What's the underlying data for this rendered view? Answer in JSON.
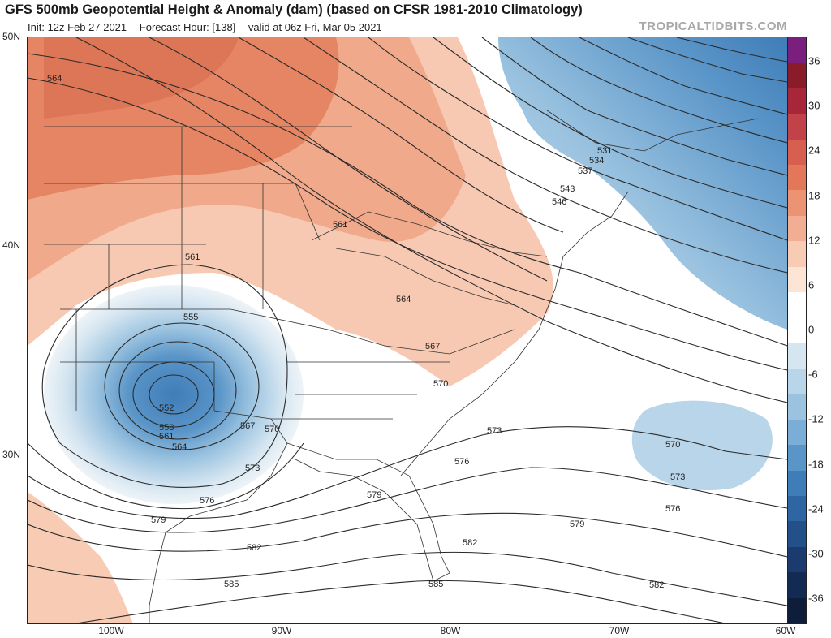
{
  "header": {
    "title": "GFS 500mb Geopotential Height & Anomaly (dam) (based on CFSR 1981-2010 Climatology)",
    "init": "Init: 12z Feb 27 2021",
    "forecast_hour": "Forecast Hour: [138]",
    "valid": "valid at 06z Fri, Mar 05 2021",
    "watermark": "TROPICALTIDBITS.COM"
  },
  "axes": {
    "lat_labels": [
      "50N",
      "40N",
      "30N"
    ],
    "lon_labels": [
      "100W",
      "90W",
      "80W",
      "70W",
      "60W"
    ]
  },
  "colorbar": {
    "labels": [
      "36",
      "30",
      "24",
      "18",
      "12",
      "6",
      "0",
      "-6",
      "-12",
      "-18",
      "-24",
      "-30",
      "-36"
    ],
    "colors": [
      "#7b1f7e",
      "#8a1c2a",
      "#a8263a",
      "#c2424a",
      "#d65f4f",
      "#e2775a",
      "#eb9373",
      "#f2ae93",
      "#f8cbb4",
      "#fde5d6",
      "#ffffff",
      "#ffffff",
      "#d6e6f1",
      "#b9d5e9",
      "#9bc3e0",
      "#7aaed6",
      "#5a95c8",
      "#3f7db8",
      "#2d66a3",
      "#24508a",
      "#1b3b6e",
      "#132a52",
      "#0d1d3a"
    ]
  },
  "contours": {
    "labels": [
      "564",
      "561",
      "561",
      "555",
      "552",
      "558",
      "561",
      "564",
      "567",
      "570",
      "564",
      "567",
      "570",
      "573",
      "573",
      "576",
      "576",
      "579",
      "579",
      "582",
      "582",
      "585",
      "585",
      "531",
      "534",
      "537",
      "543",
      "546",
      "570",
      "573",
      "576",
      "579",
      "582"
    ]
  }
}
